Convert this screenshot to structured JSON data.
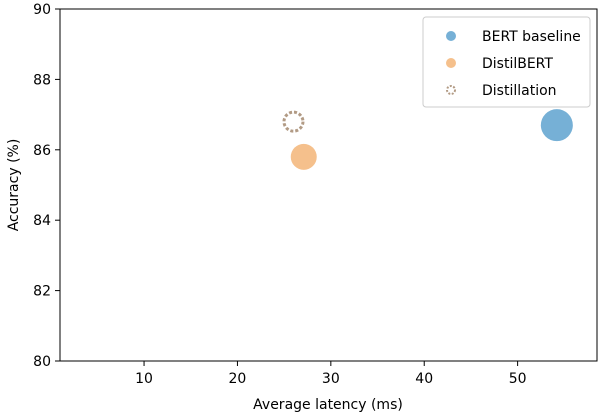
{
  "chart_data": {
    "type": "scatter",
    "xlabel": "Average latency (ms)",
    "ylabel": "Accuracy (%)",
    "xlim": [
      1,
      58.5
    ],
    "ylim": [
      80,
      90
    ],
    "xticks": [
      10,
      20,
      30,
      40,
      50
    ],
    "yticks": [
      80,
      82,
      84,
      86,
      88,
      90
    ],
    "grid": false,
    "legend_position": "top-right",
    "series": [
      {
        "name": "BERT baseline",
        "x": [
          54.2
        ],
        "y": [
          86.7
        ],
        "color": "#76b0d6",
        "style": "filled",
        "size": 32
      },
      {
        "name": "DistilBERT",
        "x": [
          27.1
        ],
        "y": [
          85.8
        ],
        "color": "#f5c08c",
        "style": "filled",
        "size": 26
      },
      {
        "name": "Distillation",
        "x": [
          26.0
        ],
        "y": [
          86.8
        ],
        "color": "#b29b85",
        "style": "dashed-ring",
        "size": 22
      }
    ]
  }
}
